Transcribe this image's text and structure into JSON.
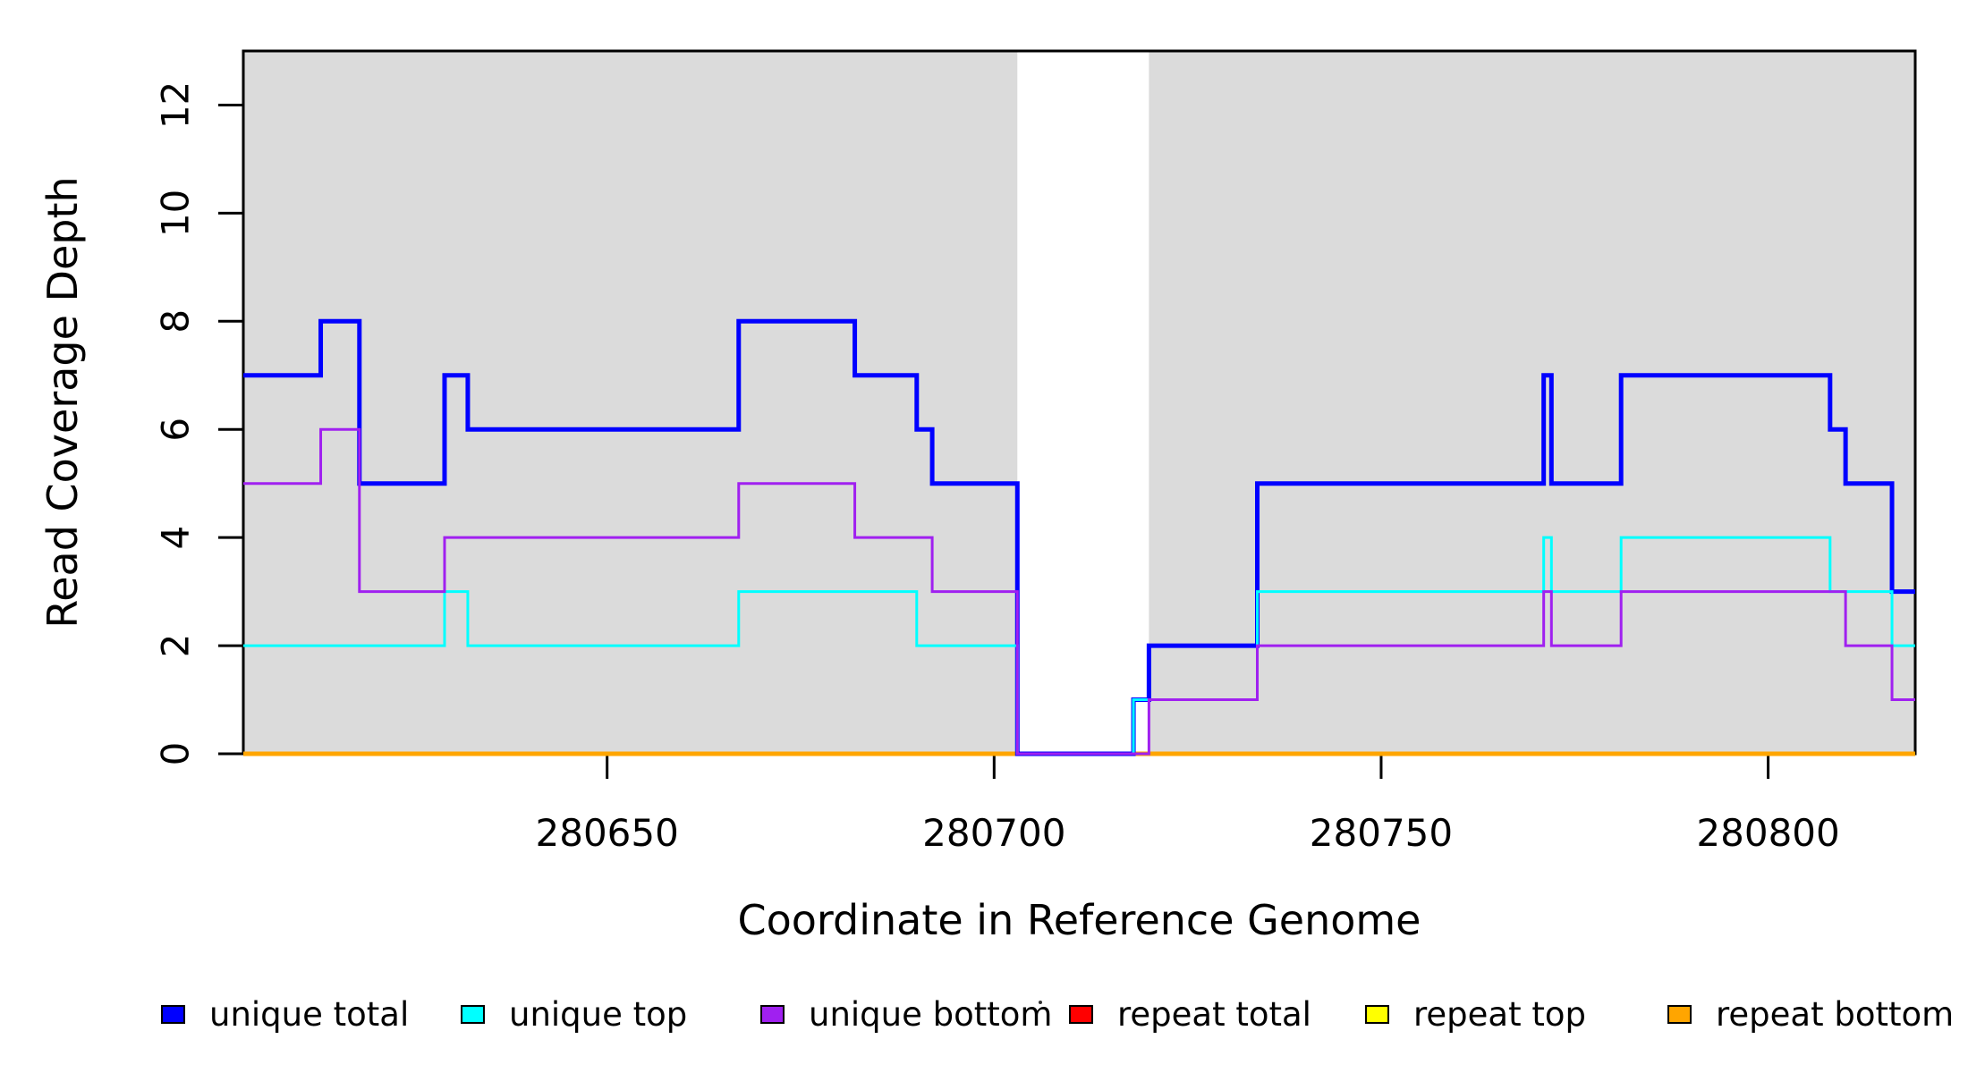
{
  "chart_data": {
    "type": "line",
    "subtype": "step",
    "title": "",
    "xlabel": "Coordinate in Reference Genome",
    "ylabel": "Read Coverage Depth",
    "xlim": [
      280603,
      280819
    ],
    "ylim": [
      0,
      13
    ],
    "x_ticks": [
      280650,
      280700,
      280750,
      280800
    ],
    "y_ticks": [
      0,
      2,
      4,
      6,
      8,
      10,
      12
    ],
    "grid": "off",
    "legend_position": "bottom",
    "background_shading": {
      "color": "#DBDBDB",
      "regions": [
        [
          280603,
          280703
        ],
        [
          280720,
          280819
        ]
      ],
      "gap_region": [
        280703,
        280720
      ]
    },
    "series": [
      {
        "name": "repeat total",
        "color": "#FF0000",
        "line_width": 4,
        "breakpoints": [
          [
            280603,
            0
          ]
        ]
      },
      {
        "name": "repeat top",
        "color": "#FFFF00",
        "line_width": 4,
        "breakpoints": [
          [
            280603,
            0
          ]
        ]
      },
      {
        "name": "repeat bottom",
        "color": "#FFA500",
        "line_width": 5,
        "breakpoints": [
          [
            280603,
            0
          ]
        ]
      },
      {
        "name": "unique total",
        "color": "#0000FF",
        "line_width": 5,
        "breakpoints": [
          [
            280603,
            7
          ],
          [
            280613,
            8
          ],
          [
            280618,
            5
          ],
          [
            280629,
            7
          ],
          [
            280632,
            6
          ],
          [
            280667,
            8
          ],
          [
            280682,
            7
          ],
          [
            280690,
            6
          ],
          [
            280692,
            5
          ],
          [
            280703,
            0
          ],
          [
            280718,
            1
          ],
          [
            280720,
            2
          ],
          [
            280734,
            5
          ],
          [
            280771,
            7
          ],
          [
            280772,
            5
          ],
          [
            280781,
            7
          ],
          [
            280808,
            6
          ],
          [
            280810,
            5
          ],
          [
            280816,
            3
          ]
        ]
      },
      {
        "name": "unique top",
        "color": "#00FFFF",
        "line_width": 3,
        "breakpoints": [
          [
            280603,
            2
          ],
          [
            280629,
            3
          ],
          [
            280632,
            2
          ],
          [
            280667,
            3
          ],
          [
            280690,
            2
          ],
          [
            280703,
            0
          ],
          [
            280718,
            1
          ],
          [
            280734,
            3
          ],
          [
            280771,
            4
          ],
          [
            280772,
            3
          ],
          [
            280781,
            4
          ],
          [
            280808,
            3
          ],
          [
            280816,
            2
          ]
        ]
      },
      {
        "name": "unique bottom",
        "color": "#A020F0",
        "line_width": 3,
        "breakpoints": [
          [
            280603,
            5
          ],
          [
            280613,
            6
          ],
          [
            280618,
            3
          ],
          [
            280629,
            4
          ],
          [
            280667,
            5
          ],
          [
            280682,
            4
          ],
          [
            280692,
            3
          ],
          [
            280703,
            0
          ],
          [
            280720,
            1
          ],
          [
            280734,
            2
          ],
          [
            280771,
            3
          ],
          [
            280772,
            2
          ],
          [
            280781,
            3
          ],
          [
            280810,
            2
          ],
          [
            280816,
            1
          ]
        ]
      }
    ],
    "legend": [
      {
        "label": "unique total",
        "color": "#0000FF"
      },
      {
        "label": "unique top",
        "color": "#00FFFF"
      },
      {
        "label": "unique bottom",
        "color": "#A020F0"
      },
      {
        "label": "repeat total",
        "color": "#FF0000"
      },
      {
        "label": "repeat top",
        "color": "#FFFF00"
      },
      {
        "label": "repeat bottom",
        "color": "#FFA500"
      }
    ]
  }
}
